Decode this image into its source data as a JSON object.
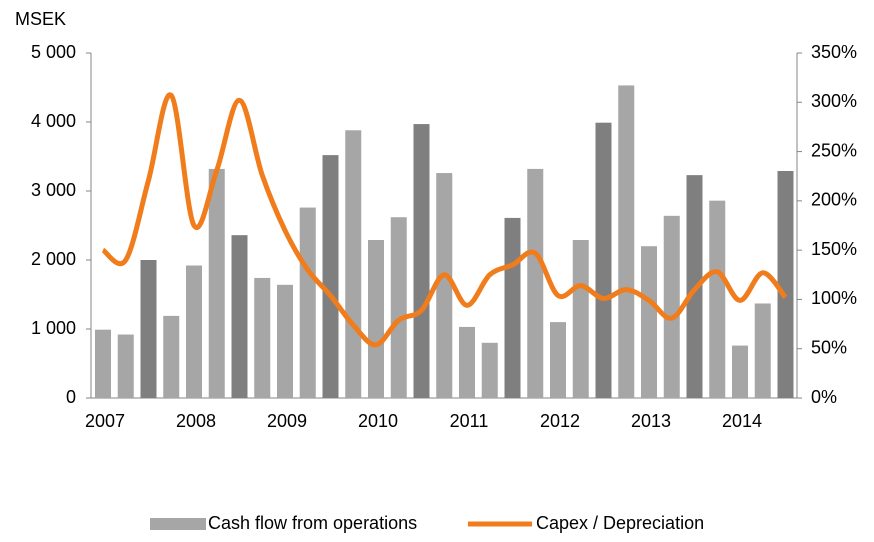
{
  "chart_data": {
    "type": "bar",
    "y_label": "MSEK",
    "categories": [
      "2007",
      null,
      null,
      null,
      "2008",
      null,
      null,
      null,
      "2009",
      null,
      null,
      null,
      "2010",
      null,
      null,
      null,
      "2011",
      null,
      null,
      null,
      "2012",
      null,
      null,
      null,
      "2013",
      null,
      null,
      null,
      "2014",
      null,
      null
    ],
    "series": [
      {
        "name": "Cash flow from operations",
        "color": "#a6a6a6",
        "point_colors": [
          "#a6a6a6",
          "#a6a6a6",
          "#7f7f7f",
          "#a6a6a6",
          "#a6a6a6",
          "#a6a6a6",
          "#7f7f7f",
          "#a6a6a6",
          "#a6a6a6",
          "#a6a6a6",
          "#7f7f7f",
          "#a6a6a6",
          "#a6a6a6",
          "#a6a6a6",
          "#7f7f7f",
          "#a6a6a6",
          "#a6a6a6",
          "#a6a6a6",
          "#7f7f7f",
          "#a6a6a6",
          "#a6a6a6",
          "#a6a6a6",
          "#7f7f7f",
          "#a6a6a6",
          "#a6a6a6",
          "#a6a6a6",
          "#7f7f7f",
          "#a6a6a6",
          "#a6a6a6",
          "#a6a6a6",
          "#7f7f7f"
        ],
        "values": [
          990,
          920,
          2000,
          1190,
          1920,
          3320,
          2360,
          1740,
          1640,
          2760,
          3520,
          3880,
          2290,
          2620,
          3970,
          3260,
          1030,
          800,
          2610,
          3320,
          1100,
          2290,
          3990,
          4530,
          2200,
          2640,
          3230,
          2860,
          760,
          1370,
          3290
        ]
      },
      {
        "name": "Capex / Depreciation",
        "color": "#f07c1c",
        "type": "line",
        "axis": "y2",
        "values": [
          150,
          140,
          221,
          307,
          175,
          231,
          302,
          226,
          170,
          130,
          104,
          74,
          54,
          79,
          89,
          125,
          94,
          125,
          135,
          147,
          104,
          114,
          101,
          110,
          99,
          81,
          110,
          128,
          99,
          127,
          102
        ]
      }
    ],
    "ylim": [
      0,
      5000
    ],
    "yticks": [
      0,
      {
        "value": 1000,
        "label": "1 000"
      },
      {
        "value": 2000,
        "label": "2 000"
      },
      {
        "value": 3000,
        "label": "3 000"
      },
      {
        "value": 4000,
        "label": "4 000"
      },
      {
        "value": 5000,
        "label": "5 000"
      }
    ],
    "y2lim": [
      0,
      350
    ],
    "y2ticks": [
      {
        "value": 0,
        "label": "0%"
      },
      {
        "value": 50,
        "label": "50%"
      },
      {
        "value": 100,
        "label": "100%"
      },
      {
        "value": 150,
        "label": "150%"
      },
      {
        "value": 200,
        "label": "200%"
      },
      {
        "value": 250,
        "label": "250%"
      },
      {
        "value": 300,
        "label": "300%"
      },
      {
        "value": 350,
        "label": "350%"
      }
    ],
    "grid": false,
    "legend": "bottom"
  }
}
